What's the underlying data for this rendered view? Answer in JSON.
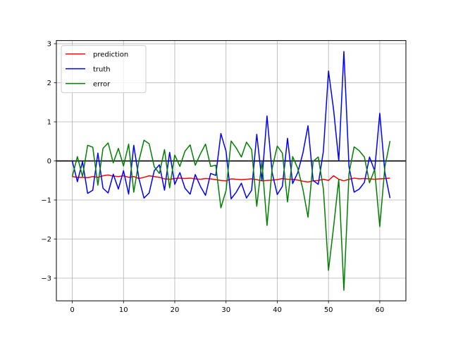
{
  "chart_data": {
    "type": "line",
    "xlim": [
      -3.1,
      65.1
    ],
    "ylim": [
      -3.58,
      3.08
    ],
    "grid": true,
    "legend_position": "upper-left",
    "x_ticks": [
      0,
      10,
      20,
      30,
      40,
      50,
      60
    ],
    "y_ticks": [
      -3,
      -2,
      -1,
      0,
      1,
      2,
      3
    ],
    "x_tick_labels": [
      "0",
      "10",
      "20",
      "30",
      "40",
      "50",
      "60"
    ],
    "y_tick_labels": [
      "−3",
      "−2",
      "−1",
      "0",
      "1",
      "2",
      "3"
    ],
    "reference_line": {
      "y": 0,
      "color": "#000000"
    },
    "x": [
      0,
      1,
      2,
      3,
      4,
      5,
      6,
      7,
      8,
      9,
      10,
      11,
      12,
      13,
      14,
      15,
      16,
      17,
      18,
      19,
      20,
      21,
      22,
      23,
      24,
      25,
      26,
      27,
      28,
      29,
      30,
      31,
      32,
      33,
      34,
      35,
      36,
      37,
      38,
      39,
      40,
      41,
      42,
      43,
      44,
      45,
      46,
      47,
      48,
      49,
      50,
      51,
      52,
      53,
      54,
      55,
      56,
      57,
      58,
      59,
      60,
      61,
      62
    ],
    "series": [
      {
        "name": "prediction",
        "color": "#ff0000",
        "values": [
          -0.4,
          -0.42,
          -0.42,
          -0.43,
          -0.4,
          -0.42,
          -0.38,
          -0.36,
          -0.39,
          -0.4,
          -0.38,
          -0.42,
          -0.4,
          -0.45,
          -0.42,
          -0.38,
          -0.4,
          -0.42,
          -0.46,
          -0.47,
          -0.45,
          -0.44,
          -0.45,
          -0.44,
          -0.46,
          -0.47,
          -0.45,
          -0.46,
          -0.48,
          -0.5,
          -0.51,
          -0.46,
          -0.47,
          -0.48,
          -0.47,
          -0.46,
          -0.48,
          -0.51,
          -0.5,
          -0.49,
          -0.48,
          -0.45,
          -0.47,
          -0.47,
          -0.49,
          -0.52,
          -0.54,
          -0.51,
          -0.5,
          -0.47,
          -0.5,
          -0.38,
          -0.47,
          -0.51,
          -0.47,
          -0.44,
          -0.46,
          -0.45,
          -0.46,
          -0.47,
          -0.46,
          -0.45,
          -0.44
        ]
      },
      {
        "name": "truth",
        "color": "#0000ff",
        "values": [
          0.0,
          -0.53,
          -0.02,
          -0.83,
          -0.75,
          0.2,
          -0.7,
          -0.82,
          -0.34,
          -0.72,
          -0.25,
          -0.85,
          0.4,
          -0.45,
          -0.95,
          -0.82,
          -0.25,
          -0.1,
          -0.75,
          0.22,
          -0.6,
          -0.3,
          -0.7,
          -0.85,
          -0.35,
          -0.65,
          -0.88,
          -0.32,
          -0.37,
          0.7,
          0.25,
          -0.97,
          -0.8,
          -0.57,
          -0.95,
          -0.75,
          0.68,
          -0.5,
          1.15,
          -0.3,
          -0.86,
          -0.65,
          0.58,
          -0.58,
          -0.3,
          0.2,
          0.9,
          -0.5,
          -0.6,
          0.25,
          2.3,
          1.3,
          0.0,
          2.8,
          -0.15,
          -0.8,
          -0.72,
          -0.55,
          0.1,
          -0.25,
          1.22,
          -0.3,
          -0.95
        ]
      },
      {
        "name": "error",
        "color": "#008000",
        "values": [
          -0.4,
          0.11,
          -0.4,
          0.4,
          0.35,
          -0.62,
          0.32,
          0.46,
          -0.05,
          0.32,
          -0.13,
          0.43,
          -0.8,
          0.0,
          0.53,
          0.44,
          -0.15,
          -0.32,
          0.29,
          -0.69,
          0.15,
          -0.14,
          0.25,
          0.41,
          -0.11,
          0.18,
          0.43,
          -0.14,
          -0.11,
          -1.2,
          -0.76,
          0.51,
          0.33,
          0.1,
          0.48,
          0.29,
          -1.16,
          -0.01,
          -1.65,
          -0.19,
          0.38,
          0.2,
          -1.05,
          0.11,
          -0.19,
          -0.72,
          -1.44,
          -0.01,
          0.1,
          -0.72,
          -2.8,
          -1.68,
          -0.47,
          -3.31,
          -0.32,
          0.36,
          0.26,
          0.1,
          -0.56,
          -0.22,
          -1.68,
          -0.15,
          0.51
        ]
      }
    ]
  }
}
